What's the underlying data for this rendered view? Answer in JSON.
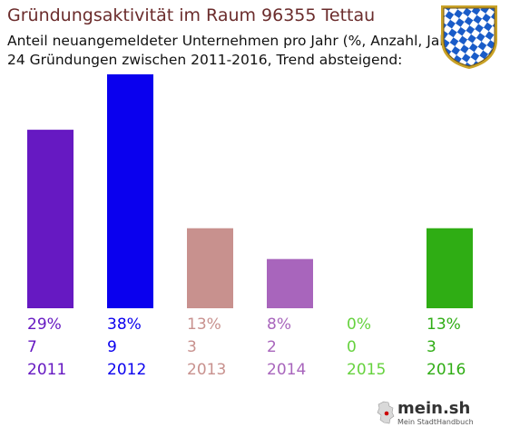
{
  "header": {
    "title": "Gründungsaktivität im Raum 96355 Tettau",
    "subtitle_line1": "Anteil neuangemeldeter Unternehmen pro Jahr (%, Anzahl, Jahr)",
    "subtitle_line2": "24 Gründungen zwischen 2011-2016, Trend absteigend:"
  },
  "crest": {
    "icon": "bavarian-lozenge-crest-icon",
    "colors": {
      "blue": "#1a5cc8",
      "white": "#ffffff",
      "gold": "#c9a227"
    }
  },
  "logo": {
    "text": "mein.sh",
    "tagline": "Mein StadtHandbuch",
    "icon": "germany-map-icon"
  },
  "chart_data": {
    "type": "bar",
    "categories": [
      "2011",
      "2012",
      "2013",
      "2014",
      "2015",
      "2016"
    ],
    "percent_labels": [
      "29%",
      "38%",
      "13%",
      "8%",
      "0%",
      "13%"
    ],
    "count_labels": [
      "7",
      "9",
      "3",
      "2",
      "0",
      "3"
    ],
    "values": [
      29,
      38,
      13,
      8,
      0,
      13
    ],
    "counts": [
      7,
      9,
      3,
      2,
      0,
      3
    ],
    "colors": [
      "#6619c2",
      "#0a00ee",
      "#c8918e",
      "#a865bc",
      "#66d23e",
      "#2fad14"
    ],
    "ylim": [
      0,
      38
    ],
    "grid": false,
    "legend": "none"
  }
}
